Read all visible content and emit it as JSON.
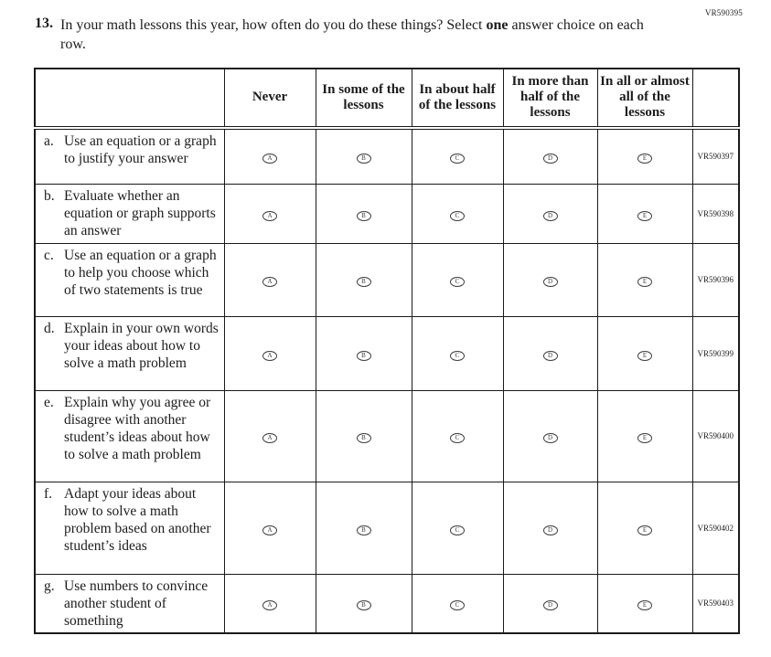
{
  "page": {
    "top_code": "VR590395"
  },
  "question": {
    "number": "13.",
    "text_part1": "In your math lessons this year, how often do you do these things? Select ",
    "bold_word": "one",
    "text_part2": " answer choice on each row."
  },
  "table": {
    "headers": [
      "Never",
      "In some of the lessons",
      "In about half of the lessons",
      "In more than half of the lessons",
      "In all or almost all of the lessons"
    ],
    "options": [
      "A",
      "B",
      "C",
      "D",
      "E"
    ],
    "rows": [
      {
        "letter": "a.",
        "text": "Use an equation or a graph to justify your answer",
        "code": "VR590397"
      },
      {
        "letter": "b.",
        "text": "Evaluate whether an equation or graph supports an answer",
        "code": "VR590398"
      },
      {
        "letter": "c.",
        "text": "Use an equation or a graph to help you choose which of two statements is true",
        "code": "VR590396"
      },
      {
        "letter": "d.",
        "text": "Explain in your own words your ideas about how to solve a math problem",
        "code": "VR590399"
      },
      {
        "letter": "e.",
        "text": "Explain why you agree or disagree with another student’s ideas about how to solve a math problem",
        "code": "VR590400"
      },
      {
        "letter": "f.",
        "text": "Adapt your ideas about how to solve a math problem based on another student’s ideas",
        "code": "VR590402"
      },
      {
        "letter": "g.",
        "text": "Use numbers to convince another student of something",
        "code": "VR590403"
      }
    ]
  }
}
